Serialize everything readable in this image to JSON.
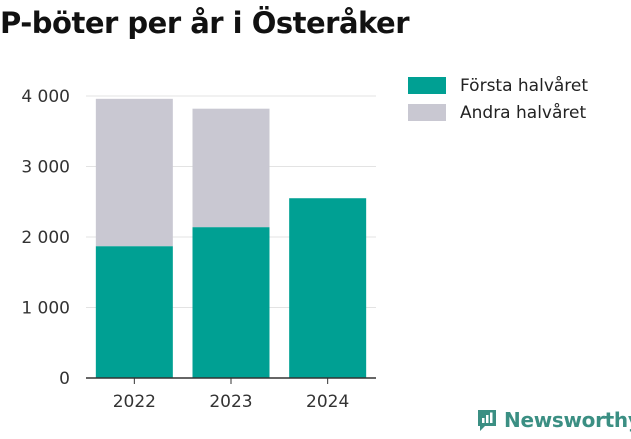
{
  "title": "P-böter per år i Österåker",
  "colors": {
    "series_1": "#00a093",
    "series_2": "#c9c8d2",
    "brand": "#3b8f83"
  },
  "brand": {
    "name": "Newsworthy",
    "icon": "newsworthy-logo-icon"
  },
  "chart_data": {
    "type": "bar",
    "stacked": true,
    "categories": [
      "2022",
      "2023",
      "2024"
    ],
    "series": [
      {
        "name": "Första halvåret",
        "values": [
          1870,
          2140,
          2550
        ]
      },
      {
        "name": "Andra halvåret",
        "values": [
          2090,
          1680,
          0
        ]
      }
    ],
    "ylim": [
      0,
      4000
    ],
    "yticks": [
      0,
      1000,
      2000,
      3000,
      4000
    ],
    "ytick_labels": [
      "0",
      "1 000",
      "2 000",
      "3 000",
      "4 000"
    ],
    "grid": true,
    "legend": "right"
  }
}
